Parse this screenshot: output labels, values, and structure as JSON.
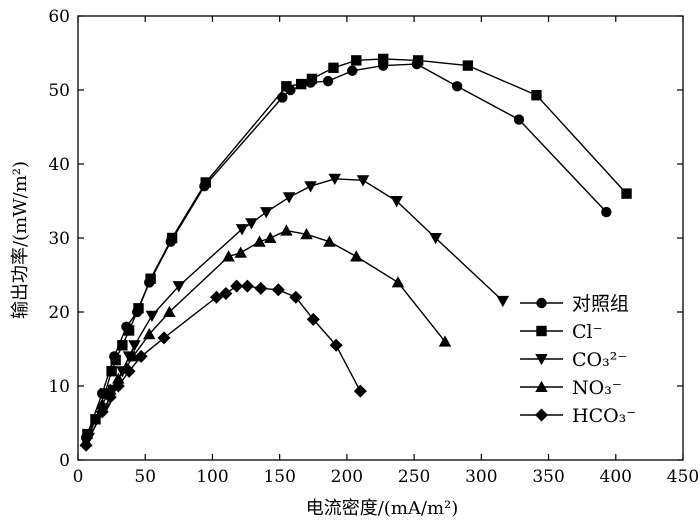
{
  "chart_data": {
    "type": "line",
    "xlabel": "电流密度/(mA/m²)",
    "ylabel": "输出功率/(mW/m²)",
    "xlim": [
      0,
      450
    ],
    "ylim": [
      0,
      60
    ],
    "xticks": [
      0,
      50,
      100,
      150,
      200,
      250,
      300,
      350,
      400,
      450
    ],
    "yticks": [
      0,
      10,
      20,
      30,
      40,
      50,
      60
    ],
    "legend_position": "bottom-right",
    "grid": false,
    "series": [
      {
        "name": "对照组",
        "marker": "circle",
        "points": [
          [
            6,
            3
          ],
          [
            18,
            9
          ],
          [
            27,
            14
          ],
          [
            36,
            18
          ],
          [
            44,
            20
          ],
          [
            53,
            24
          ],
          [
            69,
            29.5
          ],
          [
            94,
            37
          ],
          [
            152,
            49
          ],
          [
            158,
            50
          ],
          [
            173,
            51
          ],
          [
            186,
            51.2
          ],
          [
            204,
            52.6
          ],
          [
            227,
            53.3
          ],
          [
            252,
            53.5
          ],
          [
            282,
            50.5
          ],
          [
            328,
            46
          ],
          [
            393,
            33.5
          ]
        ]
      },
      {
        "name": "Cl⁻",
        "marker": "square",
        "points": [
          [
            7,
            3.5
          ],
          [
            13,
            5.5
          ],
          [
            20,
            9
          ],
          [
            25,
            12
          ],
          [
            28,
            13.5
          ],
          [
            33,
            15.5
          ],
          [
            38,
            17.5
          ],
          [
            45,
            20.5
          ],
          [
            54,
            24.5
          ],
          [
            70,
            30
          ],
          [
            95,
            37.5
          ],
          [
            155,
            50.5
          ],
          [
            166,
            50.8
          ],
          [
            174,
            51.5
          ],
          [
            190,
            53
          ],
          [
            207,
            54
          ],
          [
            227,
            54.2
          ],
          [
            253,
            54
          ],
          [
            290,
            53.3
          ],
          [
            341,
            49.3
          ],
          [
            408,
            36
          ]
        ]
      },
      {
        "name": "CO₃²⁻",
        "marker": "triangle-down",
        "points": [
          [
            8,
            3
          ],
          [
            20,
            7
          ],
          [
            26,
            9.5
          ],
          [
            33,
            12
          ],
          [
            38,
            14
          ],
          [
            42,
            15.5
          ],
          [
            55,
            19.5
          ],
          [
            75,
            23.5
          ],
          [
            122,
            31.2
          ],
          [
            129,
            32
          ],
          [
            140,
            33.5
          ],
          [
            157,
            35.5
          ],
          [
            173,
            37
          ],
          [
            191,
            38
          ],
          [
            212,
            37.8
          ],
          [
            237,
            35
          ],
          [
            266,
            30
          ],
          [
            316,
            21.5
          ]
        ]
      },
      {
        "name": "NO₃⁻",
        "marker": "triangle-up",
        "points": [
          [
            6,
            2.5
          ],
          [
            18,
            7.5
          ],
          [
            24,
            9.5
          ],
          [
            30,
            11
          ],
          [
            36,
            12.5
          ],
          [
            41,
            14
          ],
          [
            53,
            17
          ],
          [
            68,
            20
          ],
          [
            112,
            27.5
          ],
          [
            121,
            28
          ],
          [
            135,
            29.5
          ],
          [
            143,
            30
          ],
          [
            155,
            31
          ],
          [
            170,
            30.5
          ],
          [
            187,
            29.5
          ],
          [
            207,
            27.5
          ],
          [
            238,
            24
          ],
          [
            273,
            16
          ]
        ]
      },
      {
        "name": "HCO₃⁻",
        "marker": "diamond",
        "points": [
          [
            6,
            2
          ],
          [
            18,
            6.5
          ],
          [
            24,
            8.5
          ],
          [
            30,
            10
          ],
          [
            38,
            12
          ],
          [
            47,
            14
          ],
          [
            64,
            16.5
          ],
          [
            103,
            22
          ],
          [
            110,
            22.5
          ],
          [
            118,
            23.5
          ],
          [
            126,
            23.5
          ],
          [
            136,
            23.2
          ],
          [
            149,
            23
          ],
          [
            162,
            22
          ],
          [
            175,
            19
          ],
          [
            192,
            15.5
          ],
          [
            210,
            9.3
          ]
        ]
      }
    ]
  }
}
